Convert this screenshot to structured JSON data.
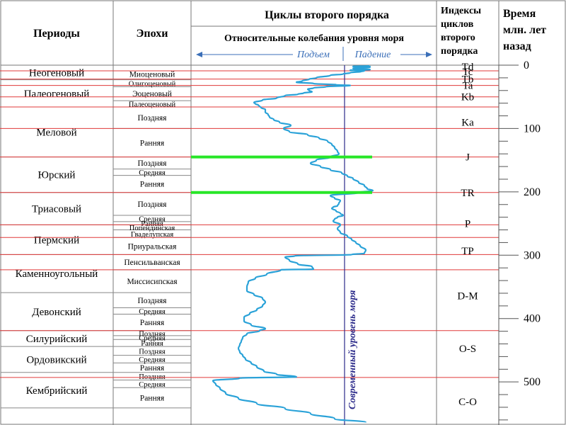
{
  "header": {
    "periods": "Периоды",
    "epochs": "Эпохи",
    "cycles_title": "Циклы второго порядка",
    "sea_level_title": "Относительные колебания уровня моря",
    "rise": "Подъем",
    "fall": "Падение",
    "indices_lines": [
      "Индексы",
      "циклов",
      "второго",
      "порядка"
    ],
    "time_lines": [
      "Время",
      "млн. лет",
      "назад"
    ]
  },
  "modern_sea_level_label": "Современный уровень моря",
  "periods": [
    {
      "name": "Неогеновый",
      "start": 0,
      "end": 23
    },
    {
      "name": "Палеогеновый",
      "start": 23,
      "end": 66
    },
    {
      "name": "Меловой",
      "start": 66,
      "end": 145
    },
    {
      "name": "Юрский",
      "start": 145,
      "end": 201
    },
    {
      "name": "Триасовый",
      "start": 201,
      "end": 252
    },
    {
      "name": "Пермский",
      "start": 252,
      "end": 299
    },
    {
      "name": "Каменноугольный",
      "start": 299,
      "end": 359
    },
    {
      "name": "Девонский",
      "start": 359,
      "end": 419
    },
    {
      "name": "Силурийский",
      "start": 419,
      "end": 444
    },
    {
      "name": "Ордовикский",
      "start": 444,
      "end": 485
    },
    {
      "name": "Кембрийский",
      "start": 485,
      "end": 541
    }
  ],
  "epochs": [
    {
      "name": "Миоценовый",
      "start": 5,
      "end": 23
    },
    {
      "name": "Олигоценовый",
      "start": 23,
      "end": 34
    },
    {
      "name": "Эоценовый",
      "start": 34,
      "end": 56
    },
    {
      "name": "Палеоценовый",
      "start": 56,
      "end": 66
    },
    {
      "name": "Поздняя",
      "start": 66,
      "end": 100
    },
    {
      "name": "Ранняя",
      "start": 100,
      "end": 145
    },
    {
      "name": "Поздняя",
      "start": 145,
      "end": 164
    },
    {
      "name": "Средняя",
      "start": 164,
      "end": 174
    },
    {
      "name": "Ранняя",
      "start": 174,
      "end": 201
    },
    {
      "name": "Поздняя",
      "start": 201,
      "end": 237
    },
    {
      "name": "Средняя",
      "start": 237,
      "end": 247
    },
    {
      "name": "Ранняя",
      "start": 247,
      "end": 252
    },
    {
      "name": "Попендинская",
      "start": 252,
      "end": 260
    },
    {
      "name": "Гваделупская",
      "start": 260,
      "end": 272
    },
    {
      "name": "Приуральская",
      "start": 272,
      "end": 299
    },
    {
      "name": "Пенсильванская",
      "start": 299,
      "end": 323
    },
    {
      "name": "Миссисипская",
      "start": 323,
      "end": 359
    },
    {
      "name": "Поздняя",
      "start": 359,
      "end": 383
    },
    {
      "name": "Средняя",
      "start": 383,
      "end": 393
    },
    {
      "name": "Ранняя",
      "start": 393,
      "end": 419
    },
    {
      "name": "Поздняя",
      "start": 419,
      "end": 427
    },
    {
      "name": "Средняя",
      "start": 427,
      "end": 433
    },
    {
      "name": "Ранняя",
      "start": 433,
      "end": 444
    },
    {
      "name": "Поздняя",
      "start": 444,
      "end": 458
    },
    {
      "name": "Средняя",
      "start": 458,
      "end": 470
    },
    {
      "name": "Ранняя",
      "start": 470,
      "end": 485
    },
    {
      "name": "Поздняя",
      "start": 485,
      "end": 497
    },
    {
      "name": "Средняя",
      "start": 497,
      "end": 509
    },
    {
      "name": "Ранняя",
      "start": 509,
      "end": 541
    }
  ],
  "cycle_indices": [
    {
      "label": "Td",
      "age": 2
    },
    {
      "label": "Tc",
      "age": 10
    },
    {
      "label": "Tb",
      "age": 22
    },
    {
      "label": "Ta",
      "age": 32
    },
    {
      "label": "Kb",
      "age": 50
    },
    {
      "label": "Ka",
      "age": 90
    },
    {
      "label": "J",
      "age": 145
    },
    {
      "label": "TR",
      "age": 201
    },
    {
      "label": "P",
      "age": 250
    },
    {
      "label": "TP",
      "age": 293
    },
    {
      "label": "D-M",
      "age": 364
    },
    {
      "label": "O-S",
      "age": 447
    },
    {
      "label": "C-O",
      "age": 531
    }
  ],
  "time_axis": {
    "ticks": [
      0,
      100,
      200,
      300,
      400,
      500
    ],
    "max": 568,
    "minor_step": 20
  },
  "cycle_boundaries": [
    9,
    22,
    32,
    50,
    66,
    100,
    145,
    201,
    252,
    272,
    299,
    323,
    419,
    493
  ],
  "highlight_boundaries": [
    145,
    201
  ],
  "colors": {
    "curve": "#2aa2d8",
    "boundary": "#e03a3a",
    "highlight": "#27e627",
    "modern_line": "#2b2a8a",
    "grid": "#888888"
  },
  "chart_data": {
    "type": "line",
    "title": "Относительные колебания уровня моря",
    "xlabel": "Подъем ← → Падение",
    "ylabel": "Время млн. лет назад",
    "ylim": [
      0,
      568
    ],
    "series": [
      {
        "points": [
          [
            1,
            1.8
          ],
          [
            2,
            0.6
          ],
          [
            3,
            1.8
          ],
          [
            5,
            0.6
          ],
          [
            7,
            1.8
          ],
          [
            8,
            0.4
          ],
          [
            9,
            1.4
          ],
          [
            10,
            1.2
          ],
          [
            12,
            0.4
          ],
          [
            14,
            -0.1
          ],
          [
            16,
            -1
          ],
          [
            20,
            -2
          ],
          [
            22,
            -2.5
          ],
          [
            25,
            -3
          ],
          [
            27,
            -3.4
          ],
          [
            29,
            -2.2
          ],
          [
            31,
            -0.6
          ],
          [
            32,
            0.4
          ],
          [
            34,
            -1.3
          ],
          [
            36,
            -2.2
          ],
          [
            38,
            -2.6
          ],
          [
            40,
            -2.5
          ],
          [
            42,
            -2.3
          ],
          [
            44,
            -2.9
          ],
          [
            46,
            -3.3
          ],
          [
            48,
            -4.2
          ],
          [
            52,
            -4.8
          ],
          [
            55,
            -5.8
          ],
          [
            59,
            -6.4
          ],
          [
            61,
            -6.3
          ],
          [
            63,
            -6.1
          ],
          [
            65,
            -6
          ],
          [
            67,
            -5.9
          ],
          [
            70,
            -5.6
          ],
          [
            74,
            -5.6
          ],
          [
            78,
            -5.4
          ],
          [
            82,
            -5.3
          ],
          [
            86,
            -5
          ],
          [
            90,
            -4.6
          ],
          [
            95,
            -3.8
          ],
          [
            100,
            -4.3
          ],
          [
            105,
            -3.9
          ],
          [
            110,
            -2.6
          ],
          [
            115,
            -1.8
          ],
          [
            120,
            -1.2
          ],
          [
            125,
            -0.9
          ],
          [
            130,
            -0.7
          ],
          [
            136,
            -0.5
          ],
          [
            140,
            -0.4
          ],
          [
            145,
            -1
          ],
          [
            150,
            -2
          ],
          [
            155,
            -2.4
          ],
          [
            160,
            -1.7
          ],
          [
            165,
            -1
          ],
          [
            170,
            -0.2
          ],
          [
            175,
            0.2
          ],
          [
            179,
            0.6
          ],
          [
            185,
            1
          ],
          [
            190,
            1.4
          ],
          [
            195,
            1.6
          ],
          [
            198,
            2
          ],
          [
            201,
            1
          ],
          [
            206,
            -1
          ],
          [
            210,
            -0.7
          ],
          [
            214,
            -0.3
          ],
          [
            218,
            -0.4
          ],
          [
            222,
            -0.5
          ],
          [
            224,
            -0.8
          ],
          [
            226,
            -0.9
          ],
          [
            230,
            -0.6
          ],
          [
            234,
            -0.3
          ],
          [
            237,
            -0.1
          ],
          [
            240,
            -0.5
          ],
          [
            243,
            -0.7
          ],
          [
            246,
            -0.8
          ],
          [
            252,
            -0.3
          ],
          [
            258,
            -0.5
          ],
          [
            264,
            -0.3
          ],
          [
            270,
            0.2
          ],
          [
            275,
            0.5
          ],
          [
            280,
            0.8
          ],
          [
            285,
            1.1
          ],
          [
            292,
            1.5
          ],
          [
            297,
            1.4
          ],
          [
            299,
            0.5
          ],
          [
            301,
            -3.5
          ],
          [
            303,
            -4.2
          ],
          [
            308,
            -3.9
          ],
          [
            314,
            -3.3
          ],
          [
            318,
            -2.3
          ],
          [
            322,
            -2.2
          ],
          [
            323,
            -4.5
          ],
          [
            330,
            -5.5
          ],
          [
            336,
            -6.3
          ],
          [
            342,
            -6.8
          ],
          [
            350,
            -6.9
          ],
          [
            356,
            -6.9
          ],
          [
            362,
            -6.4
          ],
          [
            368,
            -5.8
          ],
          [
            374,
            -5.6
          ],
          [
            380,
            -5.8
          ],
          [
            386,
            -6.2
          ],
          [
            392,
            -6.7
          ],
          [
            398,
            -7.1
          ],
          [
            404,
            -7.1
          ],
          [
            410,
            -6.6
          ],
          [
            416,
            -5.6
          ],
          [
            419,
            -6
          ],
          [
            424,
            -6.9
          ],
          [
            430,
            -7.2
          ],
          [
            436,
            -7.3
          ],
          [
            441,
            -7.4
          ],
          [
            447,
            -7.5
          ],
          [
            453,
            -7.4
          ],
          [
            458,
            -7.2
          ],
          [
            464,
            -7
          ],
          [
            470,
            -6.6
          ],
          [
            476,
            -6.2
          ],
          [
            483,
            -5.7
          ],
          [
            488,
            -4.8
          ],
          [
            492,
            -3.4
          ],
          [
            494,
            -7.4
          ],
          [
            498,
            -9.3
          ],
          [
            504,
            -9.1
          ],
          [
            510,
            -8.8
          ],
          [
            518,
            -8.4
          ],
          [
            526,
            -7.5
          ],
          [
            534,
            -6.2
          ],
          [
            542,
            -4.2
          ],
          [
            550,
            -2.4
          ],
          [
            558,
            -0.7
          ],
          [
            564,
            1.5
          ]
        ]
      }
    ]
  }
}
